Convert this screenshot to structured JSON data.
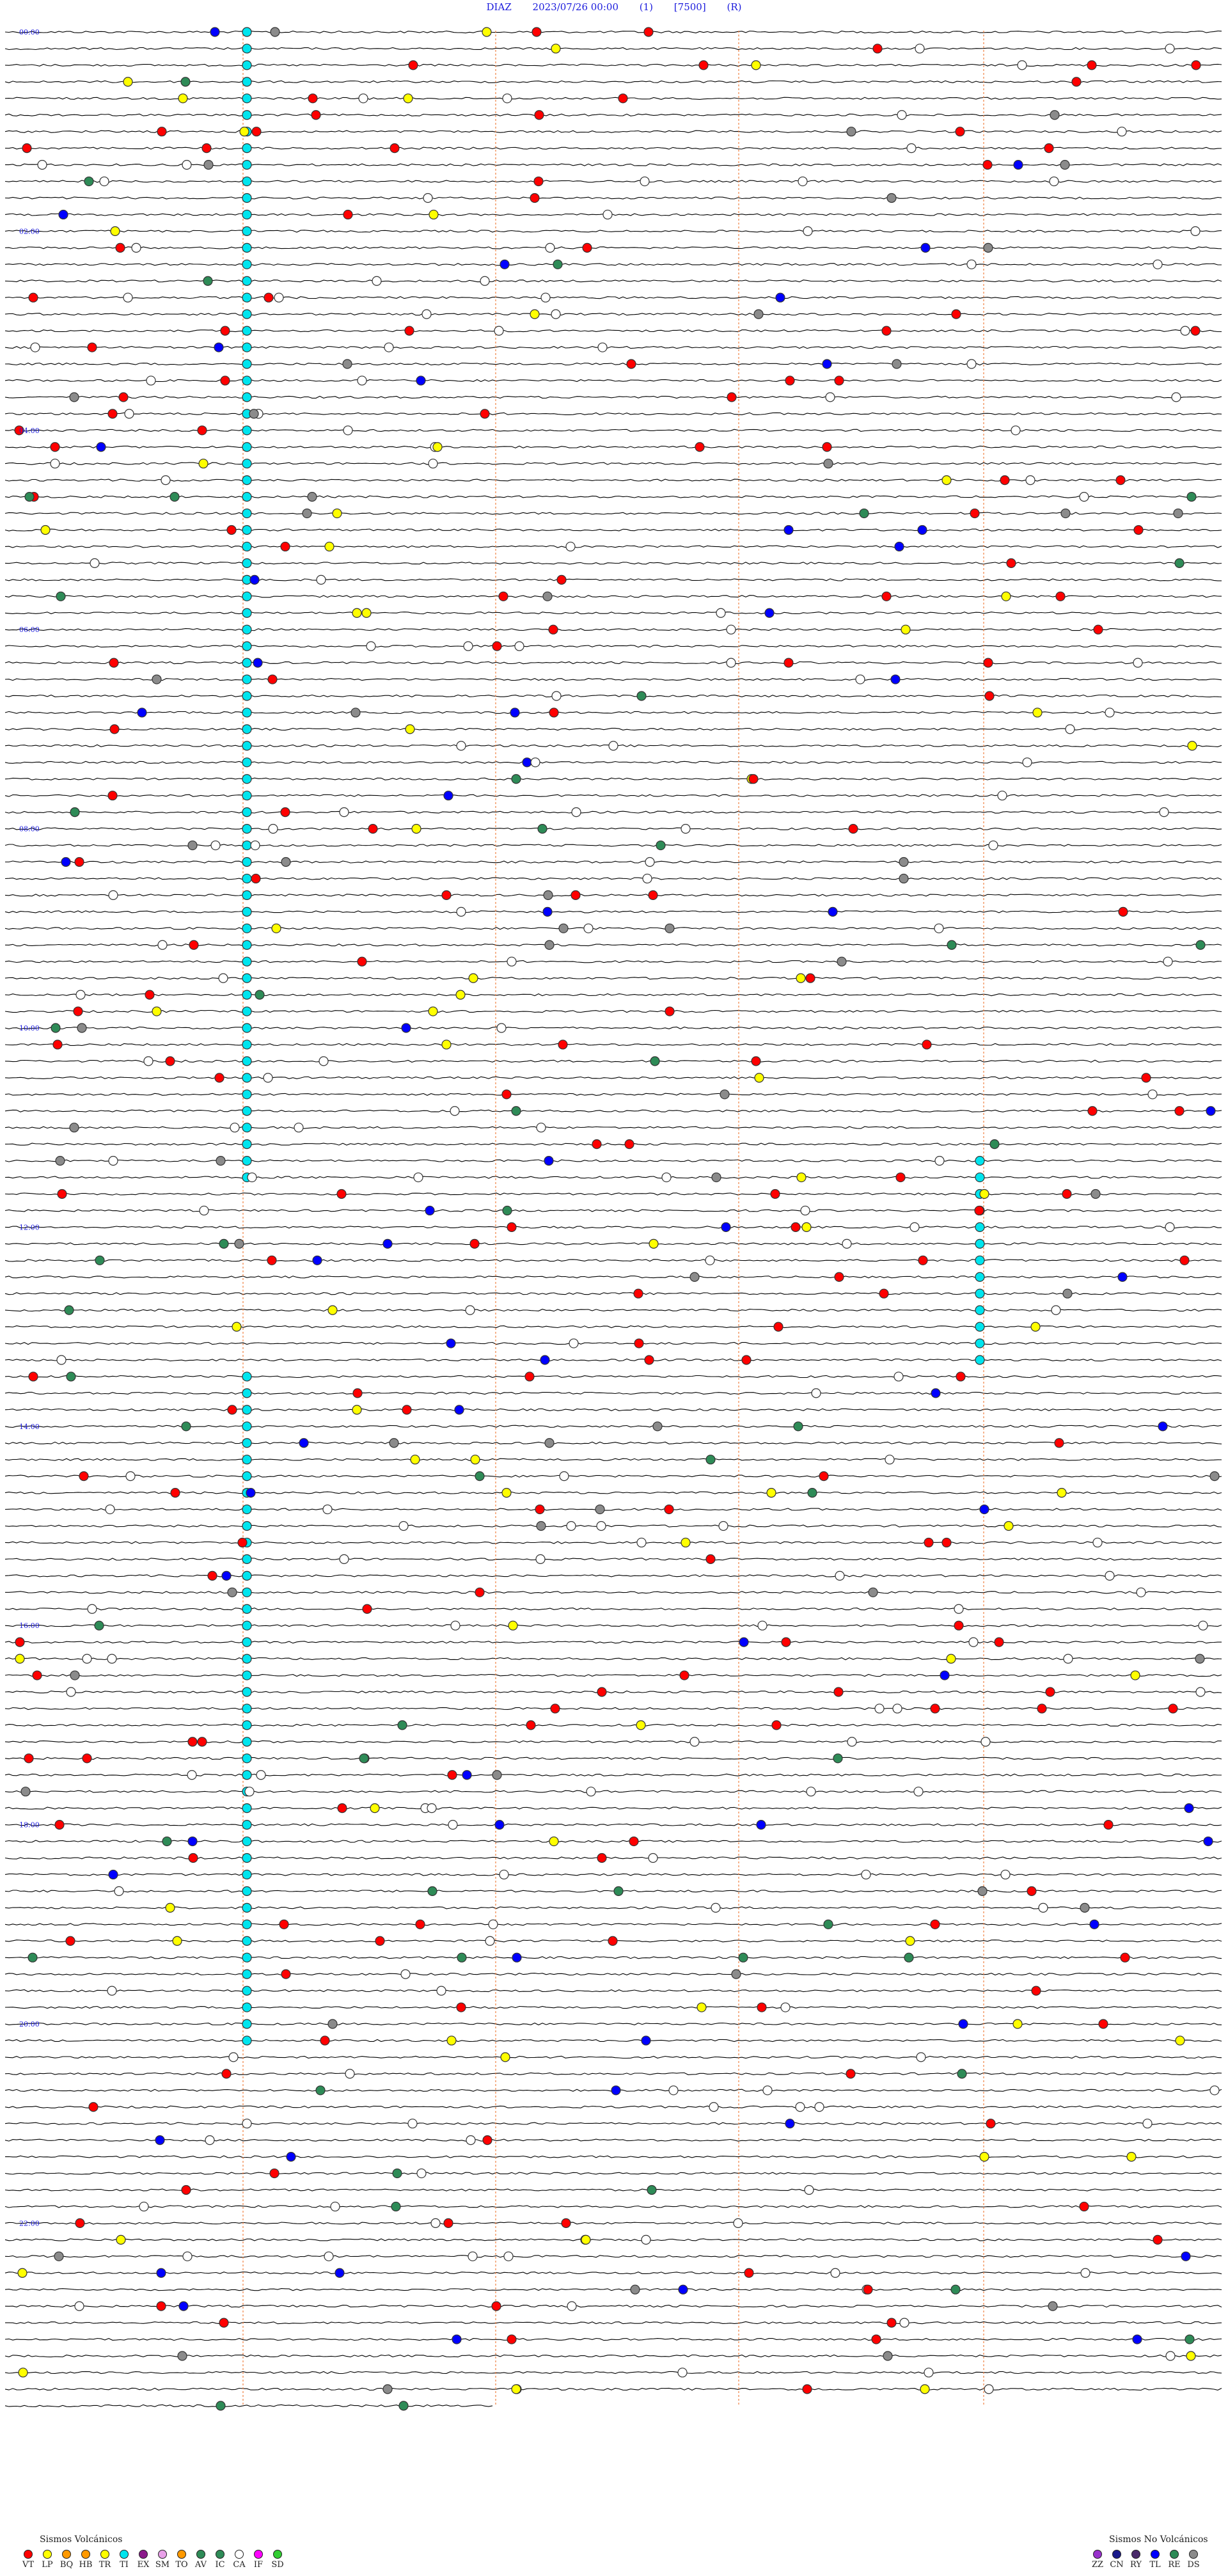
{
  "header": {
    "station": "DIAZ",
    "datetime": "2023/07/26 00:00",
    "channel": "(1)",
    "gain": "[7500]",
    "mode": "(R)"
  },
  "hour_labels": [
    "00:00",
    "02:00",
    "04:00",
    "06:00",
    "08:00",
    "10:00",
    "12:00",
    "14:00",
    "16:00",
    "18:00",
    "20:00",
    "22:00",
    "00:00"
  ],
  "legend_volcanic": {
    "title": "Sismos Volcánicos",
    "items": [
      {
        "code": "VT",
        "color": "#ff0000"
      },
      {
        "code": "LP",
        "color": "#ffff00"
      },
      {
        "code": "BQ",
        "color": "#ff9900"
      },
      {
        "code": "HB",
        "color": "#ff9900"
      },
      {
        "code": "TR",
        "color": "#ffff00"
      },
      {
        "code": "TI",
        "color": "#00e5ee"
      },
      {
        "code": "EX",
        "color": "#8b1a8b"
      },
      {
        "code": "SM",
        "color": "#e8a0e8"
      },
      {
        "code": "TO",
        "color": "#ff9900"
      },
      {
        "code": "AV",
        "color": "#2e8b57"
      },
      {
        "code": "IC",
        "color": "#2e8b57"
      },
      {
        "code": "CA",
        "color": "#ffffff"
      },
      {
        "code": "IF",
        "color": "#ff00ff"
      },
      {
        "code": "SD",
        "color": "#32cd32"
      }
    ]
  },
  "legend_non_volcanic": {
    "title": "Sismos No Volcánicos",
    "items": [
      {
        "code": "ZZ",
        "color": "#9932cc"
      },
      {
        "code": "CN",
        "color": "#1a1a8b"
      },
      {
        "code": "RY",
        "color": "#4a2a6a"
      },
      {
        "code": "TL",
        "color": "#0000ff"
      },
      {
        "code": "RE",
        "color": "#2e8b57"
      },
      {
        "code": "DS",
        "color": "#8b8b8b"
      }
    ]
  },
  "colors": {
    "header_text": "#1a1adc",
    "hour_label": "#1a1adc",
    "trace": "#000000",
    "marker_vline": "#f08040",
    "vt": "#ff0000",
    "lp": "#ffff00",
    "ti": "#00e5ee",
    "ca": "#ffffff",
    "av": "#2e8b57",
    "tl": "#0000ff",
    "ds": "#8b8b8b"
  }
}
